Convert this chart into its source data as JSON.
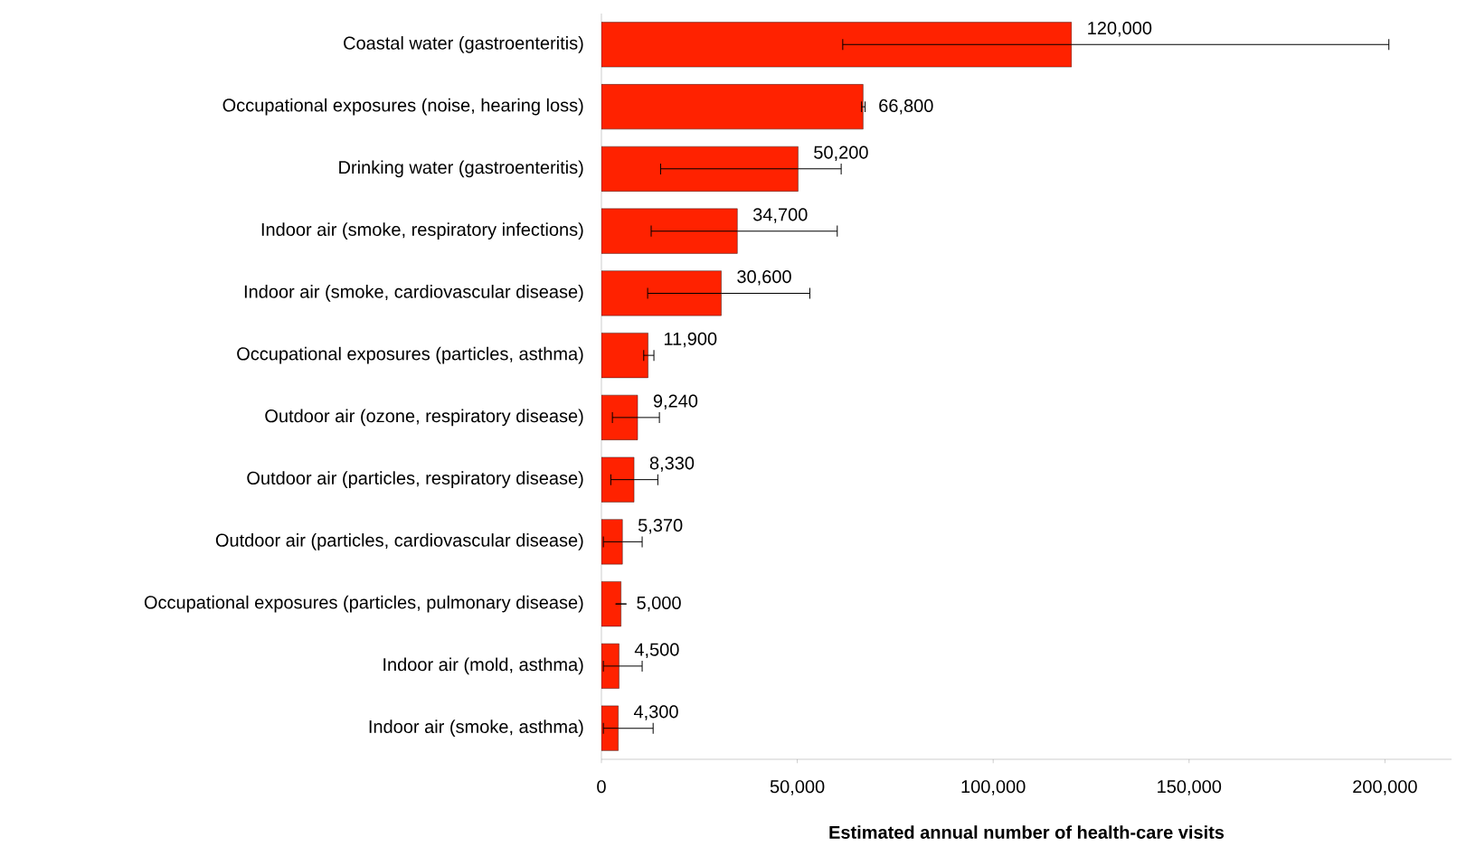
{
  "chart_data": {
    "type": "bar",
    "orientation": "horizontal",
    "xlabel": "Estimated annual number of health-care visits",
    "categories": [
      "Coastal water (gastroenteritis)",
      "Occupational exposures (noise, hearing loss)",
      "Drinking water (gastroenteritis)",
      "Indoor air (smoke, respiratory infections)",
      "Indoor air (smoke, cardiovascular disease)",
      "Occupational exposures (particles, asthma)",
      "Outdoor air (ozone, respiratory disease)",
      "Outdoor air (particles, respiratory disease)",
      "Outdoor air (particles, cardiovascular disease)",
      "Occupational exposures (particles, pulmonary disease)",
      "Indoor air (mold, asthma)",
      "Indoor air (smoke, asthma)"
    ],
    "values": [
      120000,
      66800,
      50200,
      34700,
      30600,
      11900,
      9240,
      8330,
      5370,
      5000,
      4500,
      4300
    ],
    "value_labels": [
      "120,000",
      "66,800",
      "50,200",
      "34,700",
      "30,600",
      "11,900",
      "9,240",
      "8,330",
      "5,370",
      "5,000",
      "4,500",
      "4,300"
    ],
    "errors": [
      [
        61600,
        201000
      ],
      [
        66400,
        67300
      ],
      [
        15100,
        61200
      ],
      [
        12700,
        60200
      ],
      [
        11800,
        53200
      ],
      [
        10800,
        13400
      ],
      [
        2800,
        14800
      ],
      [
        2400,
        14400
      ],
      [
        500,
        10400
      ],
      null,
      [
        500,
        10400
      ],
      [
        500,
        13200
      ]
    ],
    "color": "#ff2200",
    "xlim": [
      0,
      217000
    ],
    "xticks": [
      0,
      {
        "value": 50000,
        "label": "50,000"
      },
      {
        "value": 100000,
        "label": "100,000"
      },
      {
        "value": 150000,
        "label": "150,000"
      },
      {
        "value": 200000,
        "label": "200,000"
      }
    ]
  }
}
